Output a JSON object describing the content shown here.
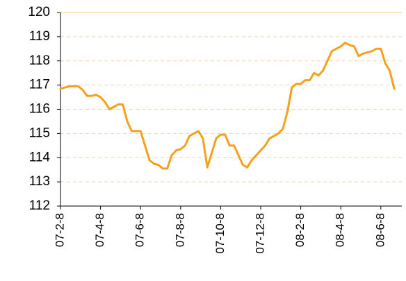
{
  "chart_data": {
    "type": "line",
    "categories": [
      "07-2-8",
      null,
      null,
      null,
      null,
      null,
      null,
      null,
      null,
      "07-4-8",
      null,
      null,
      null,
      null,
      null,
      null,
      null,
      null,
      "07-6-8",
      null,
      null,
      null,
      null,
      null,
      null,
      null,
      null,
      "07-8-8",
      null,
      null,
      null,
      null,
      null,
      null,
      null,
      null,
      "07-10-8",
      null,
      null,
      null,
      null,
      null,
      null,
      null,
      null,
      "07-12-8",
      null,
      null,
      null,
      null,
      null,
      null,
      null,
      null,
      "08-2-8",
      null,
      null,
      null,
      null,
      null,
      null,
      null,
      null,
      "08-4-8",
      null,
      null,
      null,
      null,
      null,
      null,
      null,
      null,
      "08-6-8",
      null,
      null,
      null,
      null
    ],
    "values": [
      116.85,
      116.9,
      116.95,
      116.95,
      116.95,
      116.8,
      116.55,
      116.55,
      116.6,
      116.5,
      116.3,
      116.0,
      116.1,
      116.2,
      116.2,
      115.5,
      115.1,
      115.1,
      115.1,
      114.5,
      113.9,
      113.75,
      113.7,
      113.55,
      113.55,
      114.1,
      114.3,
      114.35,
      114.5,
      114.9,
      115.0,
      115.1,
      114.8,
      113.6,
      114.2,
      114.8,
      114.95,
      114.95,
      114.5,
      114.5,
      114.1,
      113.7,
      113.6,
      113.9,
      114.1,
      114.3,
      114.5,
      114.8,
      114.9,
      115.0,
      115.2,
      115.9,
      116.9,
      117.05,
      117.05,
      117.2,
      117.2,
      117.5,
      117.4,
      117.6,
      118.0,
      118.4,
      118.5,
      118.6,
      118.75,
      118.65,
      118.6,
      118.2,
      118.3,
      118.35,
      118.4,
      118.5,
      118.5,
      117.9,
      117.6,
      116.85,
      null
    ],
    "color": "#f5a01e",
    "ylim": [
      112,
      120
    ],
    "yticks": [
      112,
      113,
      114,
      115,
      116,
      117,
      118,
      119,
      120
    ],
    "grid": true
  }
}
